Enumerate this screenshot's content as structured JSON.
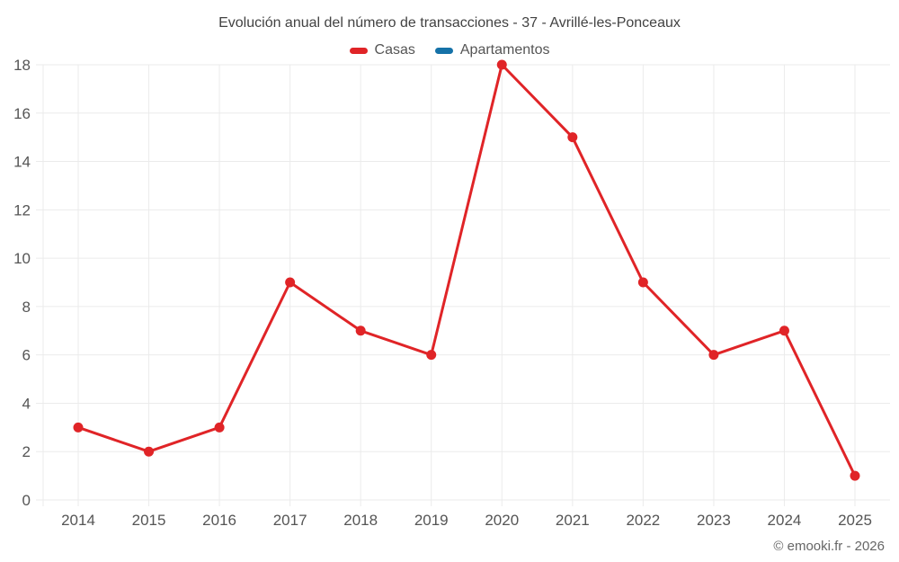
{
  "chart_data": {
    "type": "line",
    "title": "Evolución anual del número de transacciones - 37 - Avrillé-les-Ponceaux",
    "categories": [
      "2014",
      "2015",
      "2016",
      "2017",
      "2018",
      "2019",
      "2020",
      "2021",
      "2022",
      "2023",
      "2024",
      "2025"
    ],
    "series": [
      {
        "name": "Casas",
        "color": "#e02427",
        "values": [
          3,
          2,
          3,
          9,
          7,
          6,
          18,
          15,
          9,
          6,
          7,
          1
        ]
      },
      {
        "name": "Apartamentos",
        "color": "#1572a8",
        "values": []
      }
    ],
    "xlabel": "",
    "ylabel": "",
    "ylim": [
      0,
      18
    ],
    "ytick_step": 2,
    "grid": true,
    "legend_position": "top",
    "grid_color": "#ebebeb",
    "tick_label_color": "#555555",
    "title_color": "#424242"
  },
  "footer": {
    "credit": "© emooki.fr - 2026"
  }
}
